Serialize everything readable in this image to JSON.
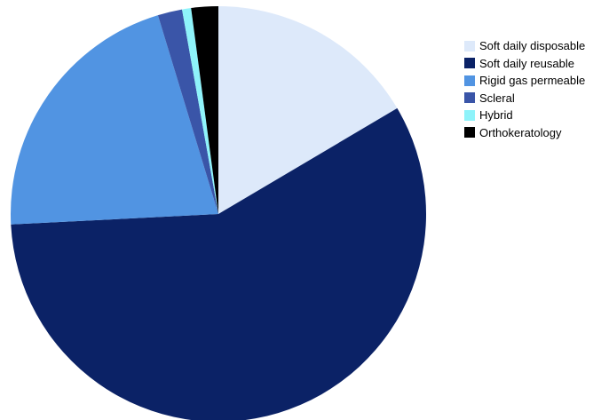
{
  "chart_data": {
    "type": "pie",
    "start_angle": "12 o'clock",
    "direction": "clockwise",
    "legend_position": "right",
    "slices": [
      {
        "label": "Soft daily disposable",
        "value": 16.5,
        "color": "#dde9fa"
      },
      {
        "label": "Soft daily reusable",
        "value": 57.7,
        "color": "#0b2266"
      },
      {
        "label": "Rigid gas permeable",
        "value": 21.1,
        "color": "#5194e2"
      },
      {
        "label": "Scleral",
        "value": 1.9,
        "color": "#3a55a8"
      },
      {
        "label": "Hybrid",
        "value": 0.7,
        "color": "#8ef3fa"
      },
      {
        "label": "Orthokeratology",
        "value": 2.1,
        "color": "#000000"
      }
    ]
  }
}
